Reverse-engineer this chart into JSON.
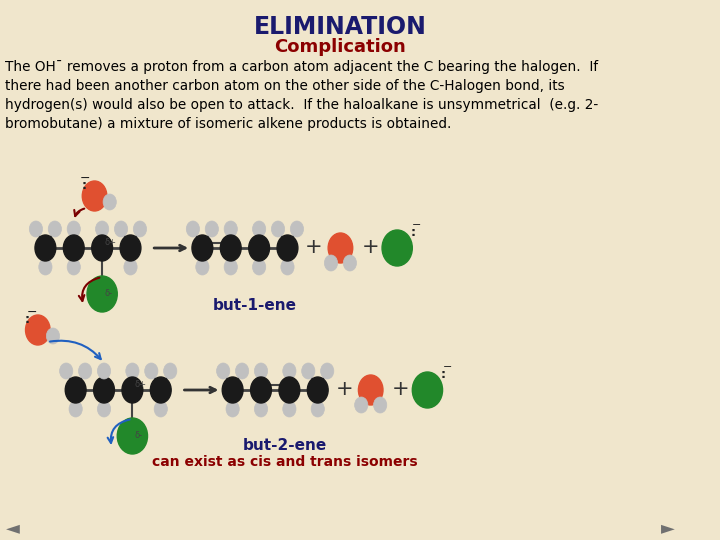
{
  "bg_color": "#f0e6cc",
  "title": "ELIMINATION",
  "title_color": "#1a1a6e",
  "title_fontsize": 17,
  "subtitle": "Complication",
  "subtitle_color": "#8b0000",
  "subtitle_fontsize": 13,
  "body_text": "The OH¯ removes a proton from a carbon atom adjacent the C bearing the halogen.  If\nthere had been another carbon atom on the other side of the C-Halogen bond, its\nhydrogen(s) would also be open to attack.  If the haloalkane is unsymmetrical  (e.g. 2-\nbromobutane) a mixture of isomeric alkene products is obtained.",
  "body_color": "#000000",
  "body_fontsize": 9.8,
  "label1": "but-1-ene",
  "label1_color": "#1a1a6e",
  "label2": "but-2-ene",
  "label2_color": "#1a1a6e",
  "label3": "can exist as cis and trans isomers",
  "label3_color": "#8b0000",
  "nav_color": "#707070",
  "carbon_dark": "#1a1a1a",
  "hydrogen_color": "#c0c0c0",
  "oxygen_color": "#e05030",
  "bromine_color": "#22882a",
  "arrow_color_r1": "#7a0000",
  "arrow_color_r2": "#2060c0",
  "bond_color": "#555555"
}
